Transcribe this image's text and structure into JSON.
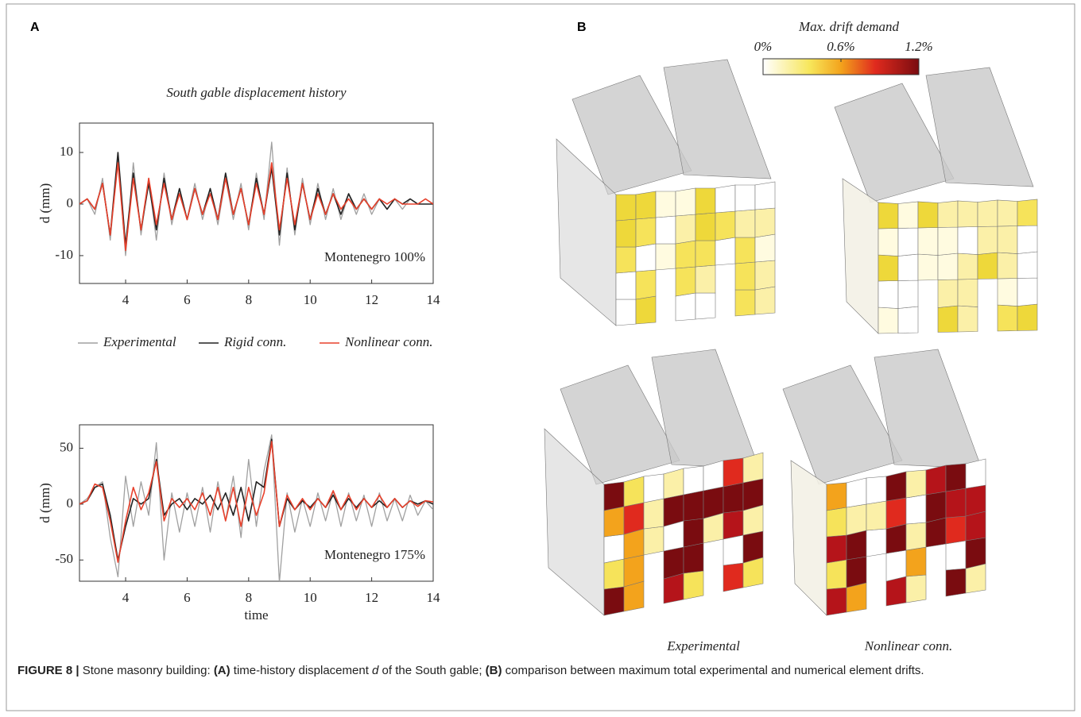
{
  "panel_labels": [
    "A",
    "B"
  ],
  "chart_data": [
    {
      "type": "line",
      "title": "South gable displacement history",
      "y_label": "d (mm)",
      "annotation": "Montenegro 100%",
      "xlim": [
        2.5,
        14
      ],
      "xticks": [
        4,
        6,
        8,
        10,
        12,
        14
      ],
      "ylim": [
        -15.4,
        15.7
      ],
      "yticks": [
        -10,
        0,
        10
      ],
      "x": [
        2.5,
        2.75,
        3,
        3.25,
        3.5,
        3.75,
        4,
        4.25,
        4.5,
        4.75,
        5,
        5.25,
        5.5,
        5.75,
        6,
        6.25,
        6.5,
        6.75,
        7,
        7.25,
        7.5,
        7.75,
        8,
        8.25,
        8.5,
        8.75,
        9,
        9.25,
        9.5,
        9.75,
        10,
        10.25,
        10.5,
        10.75,
        11,
        11.25,
        11.5,
        11.75,
        12,
        12.25,
        12.5,
        12.75,
        13,
        13.25,
        13.5,
        13.75,
        14
      ],
      "series": [
        {
          "name": "Experimental",
          "color": "#a0a0a0",
          "values": [
            0,
            1,
            -2,
            5,
            -7,
            9,
            -10,
            8,
            -6,
            5,
            -7,
            6,
            -4,
            3,
            -3,
            4,
            -3,
            3,
            -4,
            5,
            -3,
            4,
            -5,
            6,
            -3,
            12,
            -8,
            7,
            -6,
            5,
            -4,
            4,
            -3,
            3,
            -3,
            2,
            -2,
            2,
            -2,
            1,
            -1,
            1,
            -1,
            1,
            0,
            1,
            0
          ]
        },
        {
          "name": "Rigid conn.",
          "color": "#222222",
          "values": [
            0,
            1,
            -1,
            4,
            -6,
            10,
            -8,
            6,
            -5,
            4,
            -5,
            5,
            -3,
            3,
            -3,
            3,
            -2,
            3,
            -3,
            6,
            -2,
            3,
            -4,
            5,
            -2,
            7,
            -6,
            6,
            -5,
            4,
            -3,
            3,
            -2,
            2,
            -2,
            2,
            -1,
            1,
            -1,
            1,
            -1,
            1,
            0,
            1,
            0,
            0,
            0
          ]
        },
        {
          "name": "Nonlinear conn.",
          "color": "#e8412c",
          "values": [
            0,
            1,
            -1,
            4,
            -6,
            8,
            -9,
            5,
            -5,
            5,
            -4,
            4,
            -3,
            2,
            -3,
            3,
            -2,
            2,
            -3,
            5,
            -2,
            3,
            -4,
            4,
            -2,
            8,
            -5,
            5,
            -4,
            4,
            -3,
            2,
            -2,
            2,
            -1,
            1,
            -1,
            1,
            -1,
            1,
            0,
            1,
            0,
            0,
            0,
            1,
            0
          ]
        }
      ]
    },
    {
      "type": "line",
      "x_label": "time",
      "y_label": "d (mm)",
      "annotation": "Montenegro 175%",
      "xlim": [
        2.5,
        14
      ],
      "xticks": [
        4,
        6,
        8,
        10,
        12,
        14
      ],
      "ylim": [
        -69,
        71
      ],
      "yticks": [
        -50,
        0,
        50
      ],
      "x": [
        2.5,
        2.75,
        3,
        3.25,
        3.5,
        3.75,
        4,
        4.25,
        4.5,
        4.75,
        5,
        5.25,
        5.5,
        5.75,
        6,
        6.25,
        6.5,
        6.75,
        7,
        7.25,
        7.5,
        7.75,
        8,
        8.25,
        8.5,
        8.75,
        9,
        9.25,
        9.5,
        9.75,
        10,
        10.25,
        10.5,
        10.75,
        11,
        11.25,
        11.5,
        11.75,
        12,
        12.25,
        12.5,
        12.75,
        13,
        13.25,
        13.5,
        13.75,
        14
      ],
      "series": [
        {
          "color": "#a0a0a0",
          "values": [
            0,
            5,
            15,
            20,
            -30,
            -65,
            25,
            -20,
            20,
            -10,
            55,
            -50,
            10,
            -25,
            10,
            -20,
            15,
            -25,
            20,
            -15,
            25,
            -30,
            40,
            -20,
            30,
            62,
            -70,
            10,
            -25,
            5,
            -20,
            10,
            -15,
            12,
            -20,
            10,
            -15,
            8,
            -20,
            10,
            -15,
            5,
            -15,
            8,
            -10,
            3,
            -5
          ]
        },
        {
          "color": "#222222",
          "values": [
            0,
            3,
            15,
            18,
            -10,
            -50,
            -20,
            5,
            0,
            5,
            40,
            -10,
            0,
            5,
            -5,
            5,
            0,
            8,
            -5,
            10,
            -10,
            15,
            -15,
            20,
            15,
            58,
            -20,
            5,
            -5,
            3,
            -3,
            5,
            -3,
            8,
            -5,
            5,
            -3,
            5,
            -3,
            3,
            -3,
            5,
            -3,
            3,
            0,
            3,
            0
          ]
        },
        {
          "color": "#e8412c",
          "values": [
            0,
            3,
            18,
            15,
            -15,
            -52,
            -15,
            15,
            -5,
            10,
            38,
            -15,
            5,
            -3,
            5,
            -5,
            10,
            -10,
            15,
            -15,
            15,
            -20,
            15,
            -10,
            10,
            56,
            -20,
            8,
            -5,
            5,
            -5,
            5,
            -3,
            12,
            -5,
            8,
            -5,
            5,
            -3,
            8,
            -3,
            5,
            -3,
            3,
            -2,
            3,
            2
          ]
        }
      ]
    }
  ],
  "drift_legend": {
    "title": "Max. drift demand",
    "range": [
      0,
      1.2
    ],
    "ticks": [
      {
        "value": 0,
        "label": "0%"
      },
      {
        "value": 0.6,
        "label": "0.6%"
      },
      {
        "value": 1.2,
        "label": "1.2%"
      }
    ]
  },
  "building_labels": [
    "Experimental",
    "Nonlinear conn."
  ],
  "caption": [
    "FIGURE 8 |",
    " Stone masonry building: ",
    "(A)",
    " time-history displacement ",
    "d",
    " of the South gable; ",
    "(B)",
    " comparison between maximum total experimental and numerical element drifts."
  ]
}
